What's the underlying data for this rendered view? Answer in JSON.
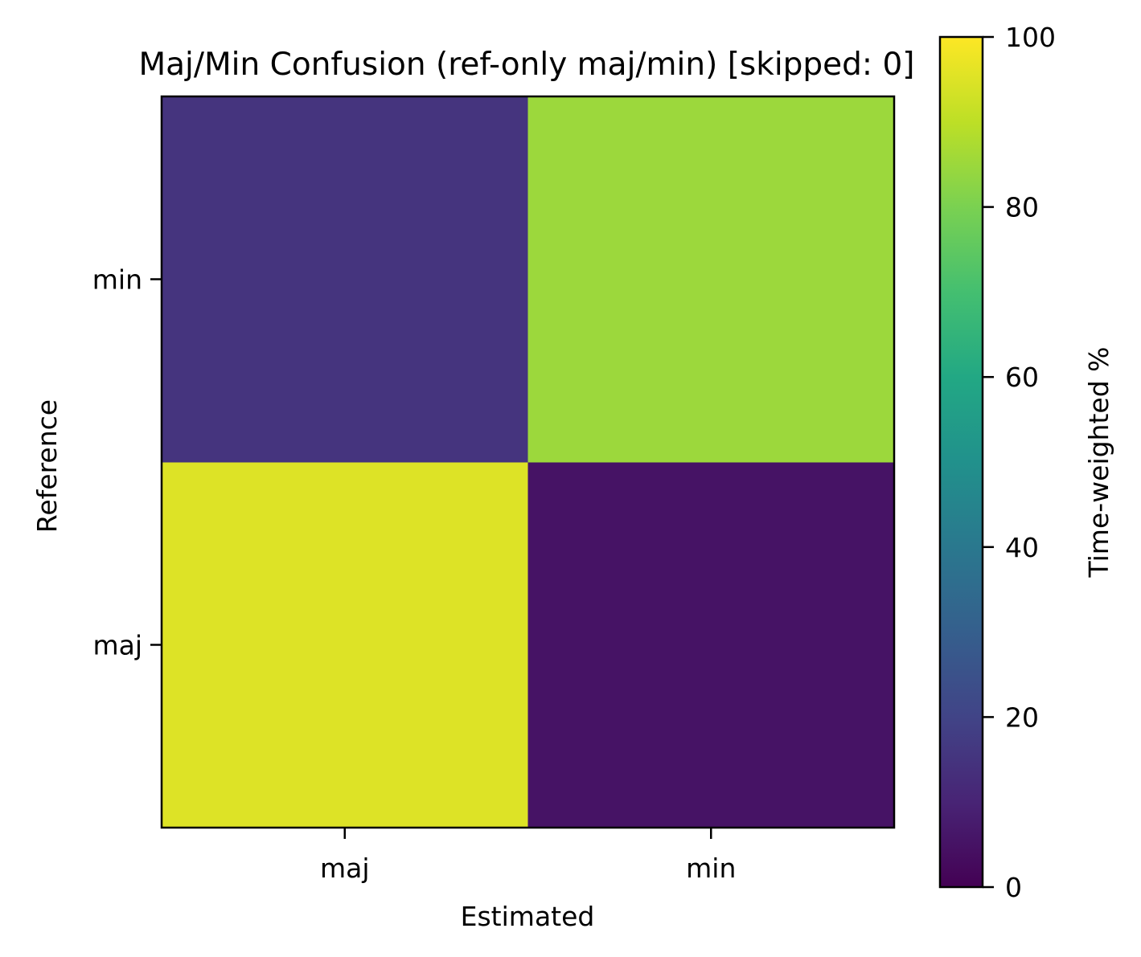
{
  "chart_data": {
    "type": "heatmap",
    "title": "Maj/Min Confusion (ref-only maj/min)  [skipped: 0]",
    "xlabel": "Estimated",
    "ylabel": "Reference",
    "x_categories": [
      "maj",
      "min"
    ],
    "y_categories": [
      "maj",
      "min"
    ],
    "values": [
      [
        95,
        5
      ],
      [
        15,
        85
      ]
    ],
    "colorbar": {
      "label": "Time-weighted %",
      "range": [
        0,
        100
      ],
      "ticks": [
        0,
        20,
        40,
        60,
        80,
        100
      ],
      "colormap": "viridis"
    },
    "grid": false
  }
}
